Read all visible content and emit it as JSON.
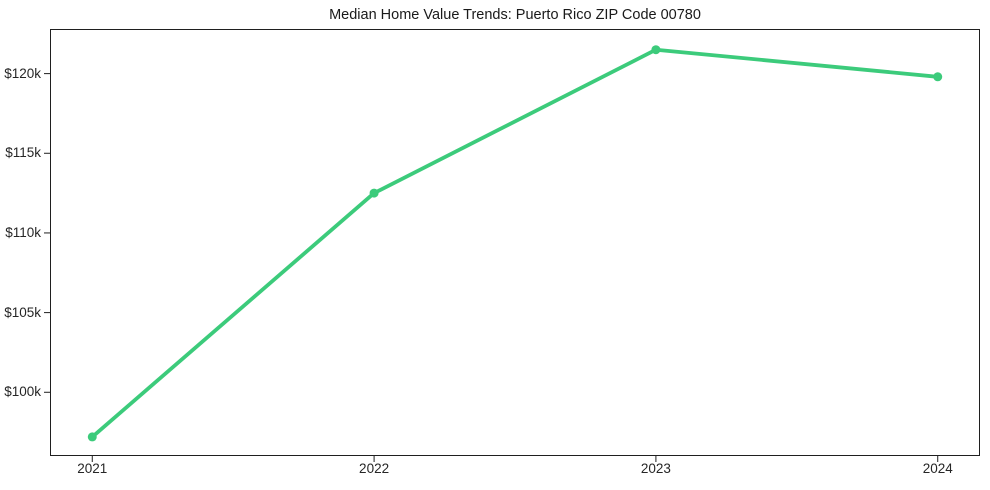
{
  "chart": {
    "title": "Median Home Value Trends: Puerto Rico ZIP Code 00780"
  },
  "chart_data": {
    "type": "line",
    "title": "Median Home Value Trends: Puerto Rico ZIP Code 00780",
    "x": [
      2021,
      2022,
      2023,
      2024
    ],
    "series": [
      {
        "name": "Median Home Value",
        "values": [
          97200,
          112500,
          121500,
          119800
        ]
      }
    ],
    "xlabel": "",
    "ylabel": "",
    "xlim": [
      2020.85,
      2024.15
    ],
    "ylim": [
      96000,
      122800
    ],
    "xticks": {
      "values": [
        2021,
        2022,
        2023,
        2024
      ],
      "labels": [
        "2021",
        "2022",
        "2023",
        "2024"
      ]
    },
    "yticks": {
      "values": [
        100000,
        105000,
        110000,
        115000,
        120000
      ],
      "labels": [
        "$100k",
        "$105k",
        "$110k",
        "$115k",
        "$120k"
      ]
    },
    "grid": false,
    "legend": "none",
    "colors": {
      "line": "#3ccb7b",
      "marker": "#3ccb7b",
      "axis": "#1f1f1f",
      "tick_text": "#262626",
      "background": "#ffffff"
    },
    "line_width": 3.8,
    "marker_radius": 4.5,
    "tick_length": 6
  }
}
